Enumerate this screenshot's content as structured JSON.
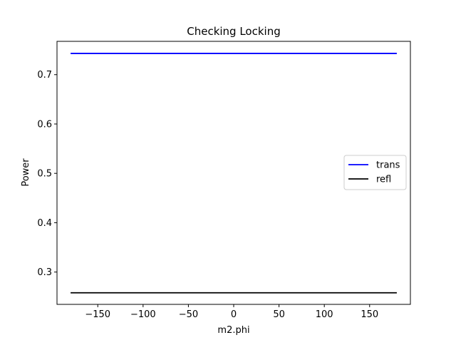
{
  "chart_data": {
    "type": "line",
    "title": "Checking Locking",
    "xlabel": "m2.phi",
    "ylabel": "Power",
    "xlim": [
      -195,
      195
    ],
    "ylim": [
      0.2345,
      0.7675
    ],
    "xticks": [
      -150,
      -100,
      -50,
      0,
      50,
      100,
      150
    ],
    "xtick_labels": [
      "−150",
      "−100",
      "−50",
      "0",
      "50",
      "100",
      "150"
    ],
    "yticks": [
      0.3,
      0.4,
      0.5,
      0.6,
      0.7
    ],
    "ytick_labels": [
      "0.3",
      "0.4",
      "0.5",
      "0.6",
      "0.7"
    ],
    "grid": false,
    "legend_position": "center-right",
    "series": [
      {
        "name": "trans",
        "color": "#0000ff",
        "x": [
          -180,
          180
        ],
        "y": [
          0.743,
          0.743
        ]
      },
      {
        "name": "refl",
        "color": "#000000",
        "x": [
          -180,
          180
        ],
        "y": [
          0.258,
          0.258
        ]
      }
    ]
  }
}
